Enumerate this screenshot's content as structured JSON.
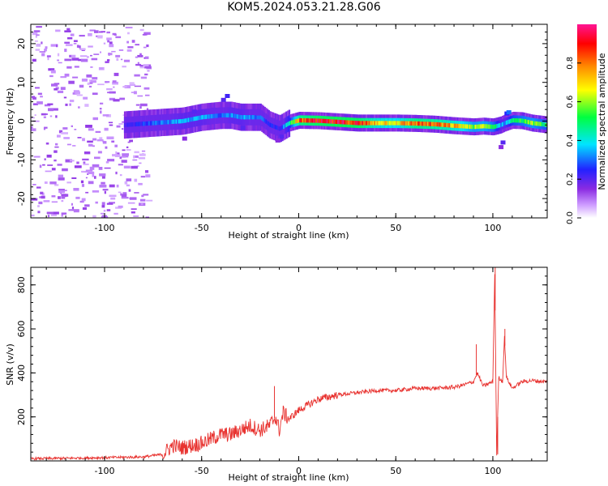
{
  "figure_title": "KOM5.2024.053.21.28.G06",
  "chart_data": [
    {
      "type": "heatmap",
      "title": "",
      "xlabel": "Height of straight line (km)",
      "ylabel": "Frequency (Hz)",
      "xlim": [
        -138,
        128
      ],
      "ylim": [
        -25,
        25
      ],
      "xticks": [
        -100,
        -50,
        0,
        50,
        100
      ],
      "yticks": [
        -20,
        -10,
        0,
        10,
        20
      ],
      "colorbar": {
        "label": "Normalized spectral amplitude",
        "range": [
          0,
          1
        ],
        "ticks": [
          "0.0",
          "0.2",
          "0.4",
          "0.6",
          "0.8"
        ],
        "colormap": [
          "#ffffff",
          "#cc99ff",
          "#8a2be2",
          "#2222ff",
          "#00e5ff",
          "#00ff40",
          "#ffff00",
          "#ff8c00",
          "#ff0000",
          "#ff1493"
        ]
      },
      "ridge": {
        "x": [
          -90,
          -75,
          -60,
          -50,
          -40,
          -35,
          -30,
          -20,
          -15,
          -10,
          -5,
          0,
          10,
          20,
          30,
          40,
          50,
          60,
          70,
          80,
          90,
          95,
          100,
          104,
          106,
          110,
          115,
          120,
          128
        ],
        "freq": [
          -1,
          -0.5,
          0,
          1,
          1.5,
          1.5,
          1,
          1,
          -1,
          -2,
          -0.5,
          0.2,
          0.1,
          -0.2,
          -0.5,
          -0.5,
          -0.5,
          -0.6,
          -0.8,
          -1.2,
          -1.5,
          -1.3,
          -1.5,
          -1.0,
          -0.5,
          0.2,
          0.1,
          -0.5,
          -1.0
        ],
        "amplitude": [
          0.2,
          0.3,
          0.35,
          0.35,
          0.3,
          0.35,
          0.35,
          0.3,
          0.25,
          0.25,
          0.45,
          0.85,
          0.9,
          0.92,
          0.9,
          0.75,
          0.7,
          0.85,
          0.82,
          0.75,
          0.6,
          0.62,
          0.55,
          0.35,
          0.35,
          0.5,
          0.55,
          0.6,
          0.5
        ]
      }
    },
    {
      "type": "line",
      "title": "",
      "xlabel": "Height of straight line (km)",
      "ylabel": "SNR (v/v)",
      "xlim": [
        -138,
        128
      ],
      "ylim": [
        0,
        880
      ],
      "xticks": [
        -100,
        -50,
        0,
        50,
        100
      ],
      "yticks": [
        200,
        400,
        600,
        800
      ],
      "series": [
        {
          "color": "#e8322f",
          "x": [
            -138,
            -120,
            -100,
            -80,
            -70,
            -65,
            -60,
            -50,
            -45,
            -40,
            -35,
            -30,
            -25,
            -20,
            -15,
            -12,
            -10,
            -8,
            -5,
            0,
            10,
            20,
            30,
            40,
            50,
            60,
            70,
            80,
            85,
            90,
            92,
            95,
            100,
            101,
            102,
            103,
            105,
            106,
            107,
            110,
            115,
            120,
            128
          ],
          "y": [
            10,
            12,
            15,
            18,
            30,
            70,
            60,
            80,
            100,
            120,
            120,
            140,
            160,
            140,
            160,
            200,
            140,
            220,
            190,
            230,
            280,
            300,
            310,
            320,
            320,
            330,
            330,
            335,
            345,
            360,
            400,
            340,
            360,
            850,
            20,
            380,
            360,
            560,
            380,
            330,
            360,
            365,
            360
          ]
        }
      ]
    }
  ]
}
